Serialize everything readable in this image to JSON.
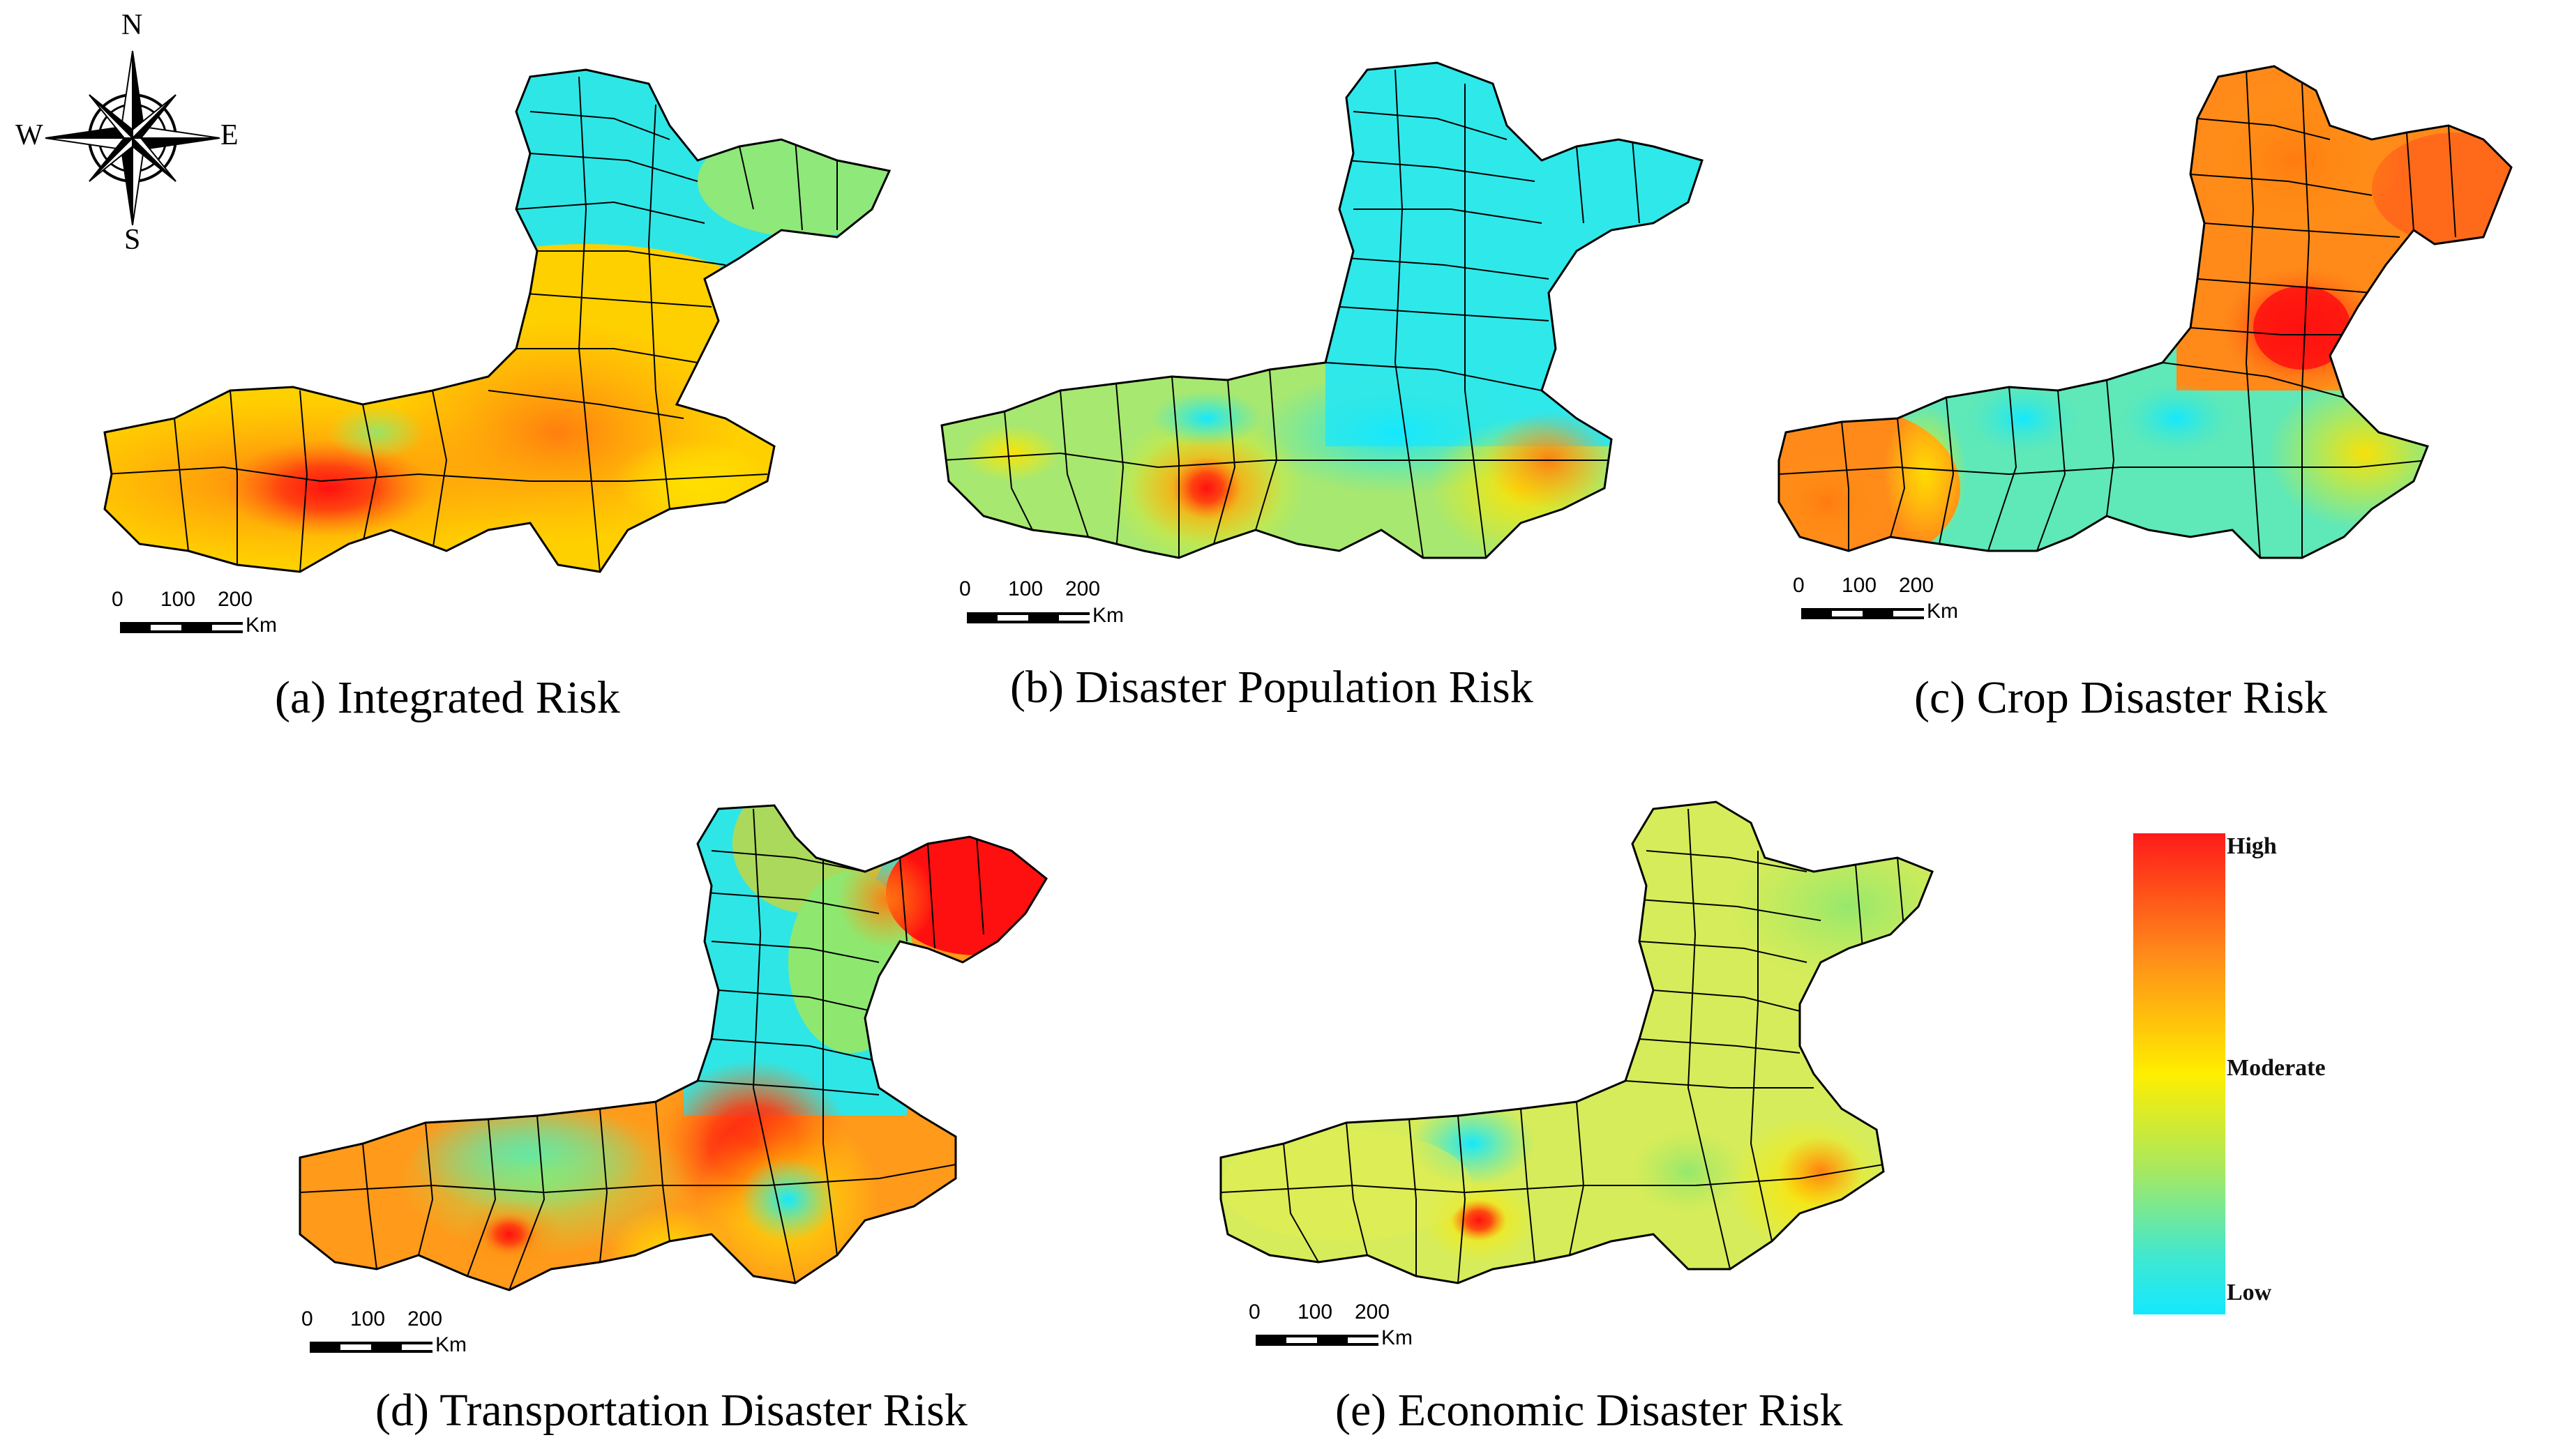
{
  "compass": {
    "north": "N",
    "south": "S",
    "east": "E",
    "west": "W"
  },
  "scale": {
    "ticks": [
      "0",
      "100",
      "200"
    ],
    "unit": "Km"
  },
  "legend": {
    "high": "High",
    "moderate": "Moderate",
    "low": "Low",
    "colors": {
      "high": "#ff1a1a",
      "moderate": "#ffee00",
      "low": "#14e8ff"
    }
  },
  "panels": [
    {
      "caption": "(a) Integrated Risk"
    },
    {
      "caption": "(b) Disaster Population Risk"
    },
    {
      "caption": "(c) Crop Disaster Risk"
    },
    {
      "caption": "(d) Transportation Disaster Risk"
    },
    {
      "caption": "(e) Economic Disaster Risk"
    }
  ]
}
